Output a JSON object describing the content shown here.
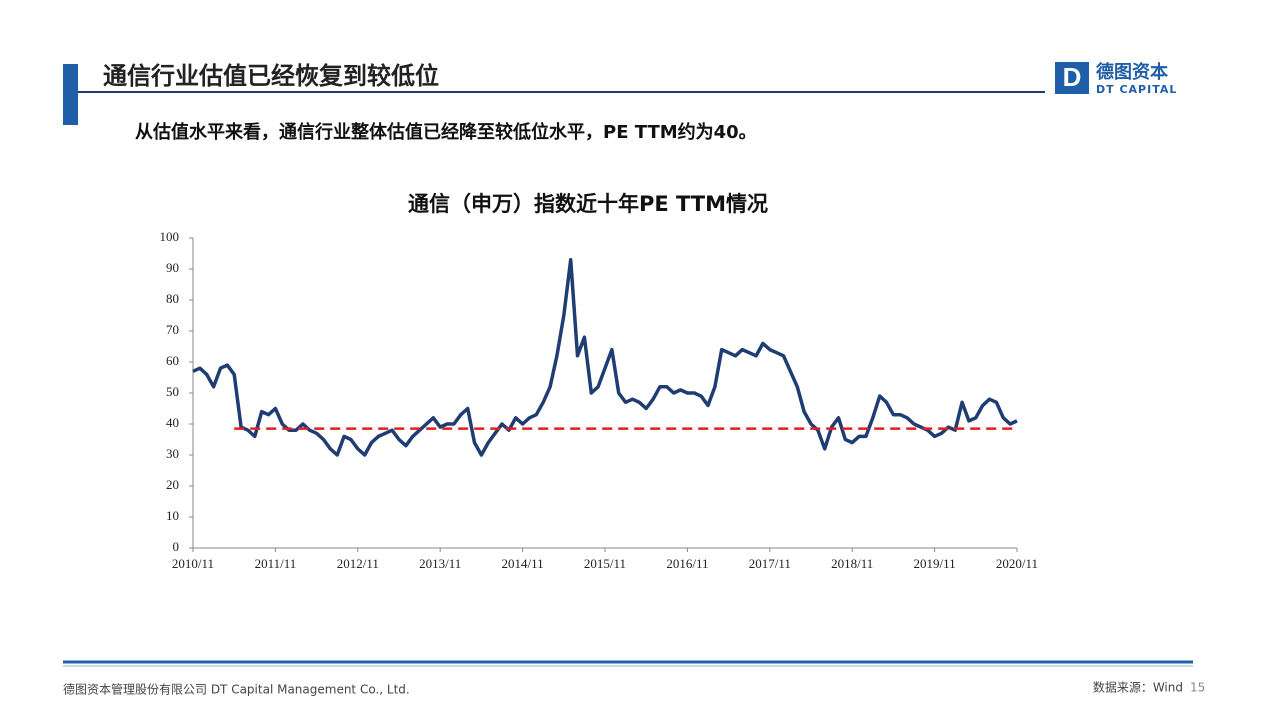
{
  "header": {
    "title": "通信行业估值已经恢复到较低位",
    "logo_cn": "德图资本",
    "logo_en": "DT CAPITAL"
  },
  "subtitle": "从估值水平来看，通信行业整体估值已经降至较低位水平，PE  TTM约为40。",
  "footer": {
    "company": "德图资本管理股份有限公司  DT Capital Management  Co., Ltd.",
    "source": "数据来源：Wind",
    "page": "15"
  },
  "chart_data": {
    "type": "line",
    "title": "通信（申万）指数近十年PE TTM情况",
    "x": [
      "2010/11",
      "2010/12",
      "2011/01",
      "2011/02",
      "2011/03",
      "2011/04",
      "2011/05",
      "2011/06",
      "2011/07",
      "2011/08",
      "2011/09",
      "2011/10",
      "2011/11",
      "2011/12",
      "2012/01",
      "2012/02",
      "2012/03",
      "2012/04",
      "2012/05",
      "2012/06",
      "2012/07",
      "2012/08",
      "2012/09",
      "2012/10",
      "2012/11",
      "2012/12",
      "2013/01",
      "2013/02",
      "2013/03",
      "2013/04",
      "2013/05",
      "2013/06",
      "2013/07",
      "2013/08",
      "2013/09",
      "2013/10",
      "2013/11",
      "2013/12",
      "2014/01",
      "2014/02",
      "2014/03",
      "2014/04",
      "2014/05",
      "2014/06",
      "2014/07",
      "2014/08",
      "2014/09",
      "2014/10",
      "2014/11",
      "2014/12",
      "2015/01",
      "2015/02",
      "2015/03",
      "2015/04",
      "2015/05",
      "2015/06",
      "2015/07",
      "2015/08",
      "2015/09",
      "2015/10",
      "2015/11",
      "2015/12",
      "2016/01",
      "2016/02",
      "2016/03",
      "2016/04",
      "2016/05",
      "2016/06",
      "2016/07",
      "2016/08",
      "2016/09",
      "2016/10",
      "2016/11",
      "2016/12",
      "2017/01",
      "2017/02",
      "2017/03",
      "2017/04",
      "2017/05",
      "2017/06",
      "2017/07",
      "2017/08",
      "2017/09",
      "2017/10",
      "2017/11",
      "2017/12",
      "2018/01",
      "2018/02",
      "2018/03",
      "2018/04",
      "2018/05",
      "2018/06",
      "2018/07",
      "2018/08",
      "2018/09",
      "2018/10",
      "2018/11",
      "2018/12",
      "2019/01",
      "2019/02",
      "2019/03",
      "2019/04",
      "2019/05",
      "2019/06",
      "2019/07",
      "2019/08",
      "2019/09",
      "2019/10",
      "2019/11",
      "2019/12",
      "2020/01",
      "2020/02",
      "2020/03",
      "2020/04",
      "2020/05",
      "2020/06",
      "2020/07",
      "2020/08",
      "2020/09",
      "2020/10",
      "2020/11"
    ],
    "series": [
      {
        "color": "#1f3d73",
        "values": [
          57,
          58,
          56,
          52,
          58,
          59,
          56,
          39,
          38,
          36,
          44,
          43,
          45,
          40,
          38,
          38,
          40,
          38,
          37,
          35,
          32,
          30,
          36,
          35,
          32,
          30,
          34,
          36,
          37,
          38,
          35,
          33,
          36,
          38,
          40,
          42,
          39,
          40,
          40,
          43,
          45,
          34,
          30,
          34,
          37,
          40,
          38,
          42,
          40,
          42,
          43,
          47,
          52,
          62,
          75,
          93,
          62,
          68,
          50,
          52,
          58,
          64,
          50,
          47,
          48,
          47,
          45,
          48,
          52,
          52,
          50,
          51,
          50,
          50,
          49,
          46,
          52,
          64,
          63,
          62,
          64,
          63,
          62,
          66,
          64,
          63,
          62,
          57,
          52,
          44,
          40,
          38,
          32,
          39,
          42,
          35,
          34,
          36,
          36,
          42,
          49,
          47,
          43,
          43,
          42,
          40,
          39,
          38,
          36,
          37,
          39,
          38,
          47,
          41,
          42,
          46,
          48,
          47,
          42,
          40,
          41
        ]
      }
    ],
    "reference_line": {
      "value": 38.5,
      "color": "#e02020",
      "x": [
        "2011/05",
        "2020/11"
      ]
    },
    "xlim": [
      "2010/11",
      "2020/11"
    ],
    "xticks": [
      "2010/11",
      "2011/11",
      "2012/11",
      "2013/11",
      "2014/11",
      "2015/11",
      "2016/11",
      "2017/11",
      "2018/11",
      "2019/11",
      "2020/11"
    ],
    "ylim": [
      0,
      100
    ],
    "yticks": [
      0,
      10,
      20,
      30,
      40,
      50,
      60,
      70,
      80,
      90,
      100
    ],
    "grid": false
  }
}
